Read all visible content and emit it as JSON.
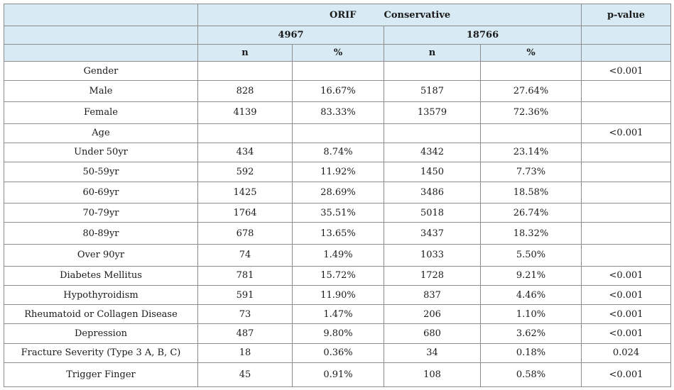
{
  "table": {
    "groups": {
      "orif": "ORIF",
      "conservative": "Conservative",
      "pvalue": "p-value"
    },
    "totals": {
      "orif": "4967",
      "conservative": "18766"
    },
    "subheaders": {
      "orif_n": "n",
      "orif_pct": "%",
      "cons_n": "n",
      "cons_pct": "%"
    },
    "rows": [
      {
        "label": "Gender",
        "orif_n": "",
        "orif_pct": "",
        "cons_n": "",
        "cons_pct": "",
        "p": "<0.001"
      },
      {
        "label": "Male",
        "orif_n": "828",
        "orif_pct": "16.67%",
        "cons_n": "5187",
        "cons_pct": "27.64%",
        "p": ""
      },
      {
        "label": "Female",
        "orif_n": "4139",
        "orif_pct": "83.33%",
        "cons_n": "13579",
        "cons_pct": "72.36%",
        "p": ""
      },
      {
        "label": "Age",
        "orif_n": "",
        "orif_pct": "",
        "cons_n": "",
        "cons_pct": "",
        "p": "<0.001"
      },
      {
        "label": "Under 50yr",
        "orif_n": "434",
        "orif_pct": "8.74%",
        "cons_n": "4342",
        "cons_pct": "23.14%",
        "p": ""
      },
      {
        "label": "50-59yr",
        "orif_n": "592",
        "orif_pct": "11.92%",
        "cons_n": "1450",
        "cons_pct": "7.73%",
        "p": ""
      },
      {
        "label": "60-69yr",
        "orif_n": "1425",
        "orif_pct": "28.69%",
        "cons_n": "3486",
        "cons_pct": "18.58%",
        "p": ""
      },
      {
        "label": "70-79yr",
        "orif_n": "1764",
        "orif_pct": "35.51%",
        "cons_n": "5018",
        "cons_pct": "26.74%",
        "p": ""
      },
      {
        "label": "80-89yr",
        "orif_n": "678",
        "orif_pct": "13.65%",
        "cons_n": "3437",
        "cons_pct": "18.32%",
        "p": ""
      },
      {
        "label": "Over 90yr",
        "orif_n": "74",
        "orif_pct": "1.49%",
        "cons_n": "1033",
        "cons_pct": "5.50%",
        "p": ""
      },
      {
        "label": "Diabetes Mellitus",
        "orif_n": "781",
        "orif_pct": "15.72%",
        "cons_n": "1728",
        "cons_pct": "9.21%",
        "p": "<0.001"
      },
      {
        "label": "Hypothyroidism",
        "orif_n": "591",
        "orif_pct": "11.90%",
        "cons_n": "837",
        "cons_pct": "4.46%",
        "p": "<0.001"
      },
      {
        "label": "Rheumatoid or Collagen Disease",
        "orif_n": "73",
        "orif_pct": "1.47%",
        "cons_n": "206",
        "cons_pct": "1.10%",
        "p": "<0.001"
      },
      {
        "label": "Depression",
        "orif_n": "487",
        "orif_pct": "9.80%",
        "cons_n": "680",
        "cons_pct": "3.62%",
        "p": "<0.001"
      },
      {
        "label": "Fracture Severity (Type 3 A, B, C)",
        "orif_n": "18",
        "orif_pct": "0.36%",
        "cons_n": "34",
        "cons_pct": "0.18%",
        "p": "0.024"
      },
      {
        "label": "Trigger Finger",
        "orif_n": "45",
        "orif_pct": "0.91%",
        "cons_n": "108",
        "cons_pct": "0.58%",
        "p": "<0.001"
      }
    ]
  }
}
